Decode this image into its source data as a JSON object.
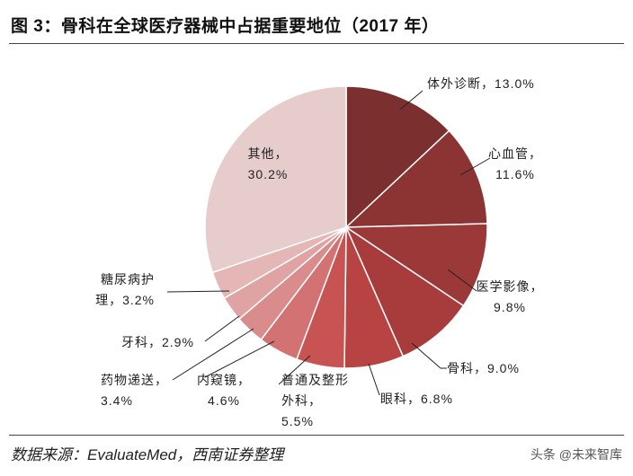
{
  "chart_data": {
    "type": "pie",
    "title": "图 3：骨科在全球医疗器械中占据重要地位（2017 年）",
    "categories": [
      "体外诊断",
      "心血管",
      "医学影像",
      "骨科",
      "眼科",
      "普通及整形外科",
      "内窥镜",
      "药物递送",
      "牙科",
      "糖尿病护理",
      "其他"
    ],
    "values": [
      13.0,
      11.6,
      9.8,
      9.0,
      6.8,
      5.5,
      4.6,
      3.4,
      2.9,
      3.2,
      30.2
    ],
    "value_labels": [
      "13.0%",
      "11.6%",
      "9.8%",
      "9.0%",
      "6.8%",
      "5.5%",
      "4.6%",
      "3.4%",
      "2.9%",
      "3.2%",
      "30.2%"
    ],
    "label_separator": "，",
    "colors": [
      "#7b2f2f",
      "#8c3434",
      "#9b3838",
      "#a83b3b",
      "#b84343",
      "#c75353",
      "#d27272",
      "#da8b8b",
      "#e0a3a3",
      "#e5b6b6",
      "#e7cccc"
    ],
    "source": "数据来源：EvaluateMed，西南证券整理",
    "watermark": "头条 @未来智库"
  }
}
